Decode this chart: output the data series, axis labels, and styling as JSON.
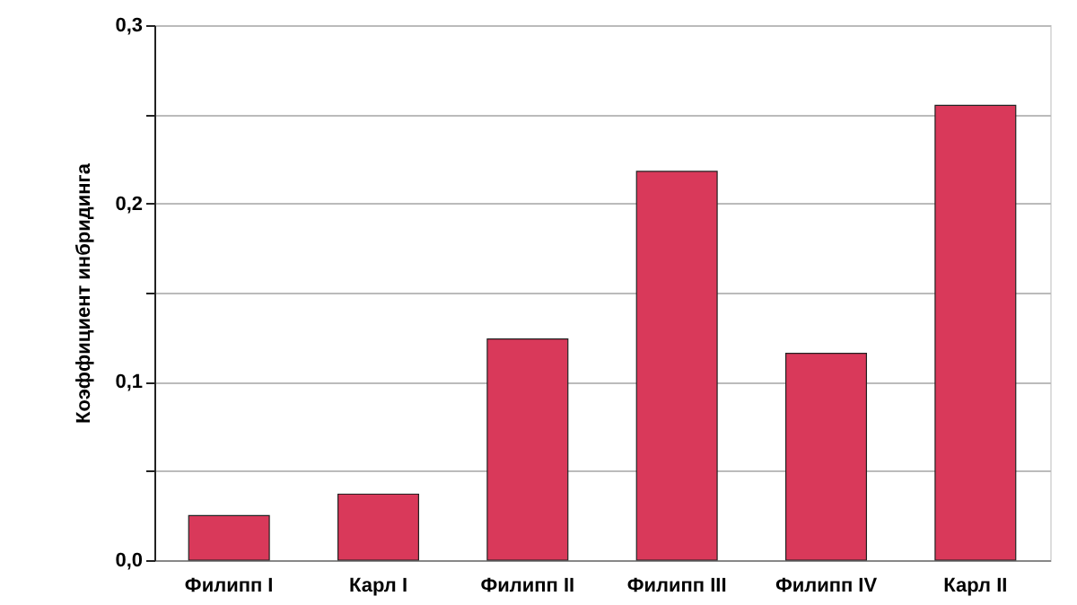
{
  "chart_data": {
    "type": "bar",
    "ylabel": "Коэффициент инбридинга",
    "categories": [
      "Филипп I",
      "Карл I",
      "Филипп II",
      "Филипп III",
      "Филипп IV",
      "Карл II"
    ],
    "values": [
      0.025,
      0.037,
      0.124,
      0.218,
      0.116,
      0.255
    ],
    "color": "#d9395a",
    "ylim": [
      0,
      0.3
    ],
    "yticks": [
      {
        "value": 0,
        "label": "0,0"
      },
      {
        "value": 0.05,
        "label": null
      },
      {
        "value": 0.1,
        "label": "0,1"
      },
      {
        "value": 0.15,
        "label": null
      },
      {
        "value": 0.2,
        "label": "0,2"
      },
      {
        "value": 0.25,
        "label": null
      },
      {
        "value": 0.3,
        "label": "0,3"
      }
    ],
    "grid": "y"
  }
}
